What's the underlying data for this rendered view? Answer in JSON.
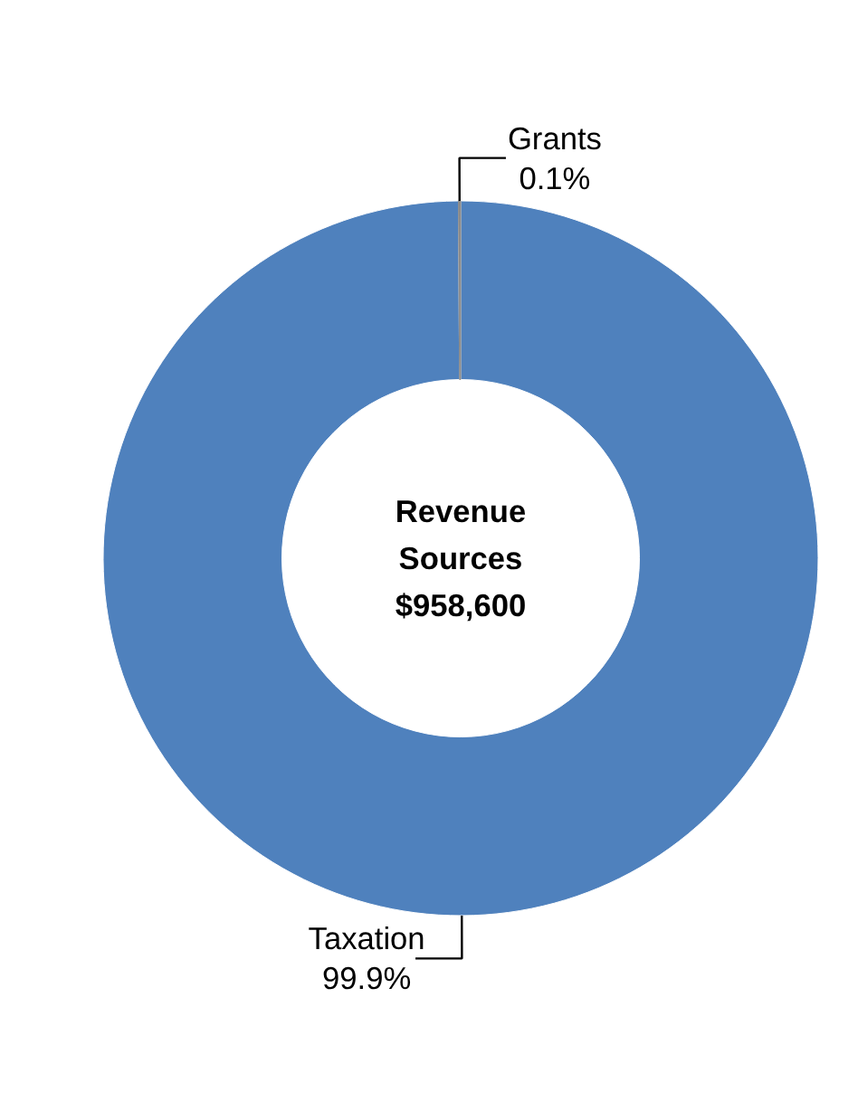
{
  "chart_data": {
    "type": "donut",
    "title": "Revenue\nSources\n$958,600",
    "categories": [
      "Taxation",
      "Grants"
    ],
    "values": [
      99.9,
      0.1
    ],
    "value_labels": [
      "99.9%",
      "0.1%"
    ],
    "colors": [
      "#4f81bd",
      "#8c8c8c"
    ]
  }
}
